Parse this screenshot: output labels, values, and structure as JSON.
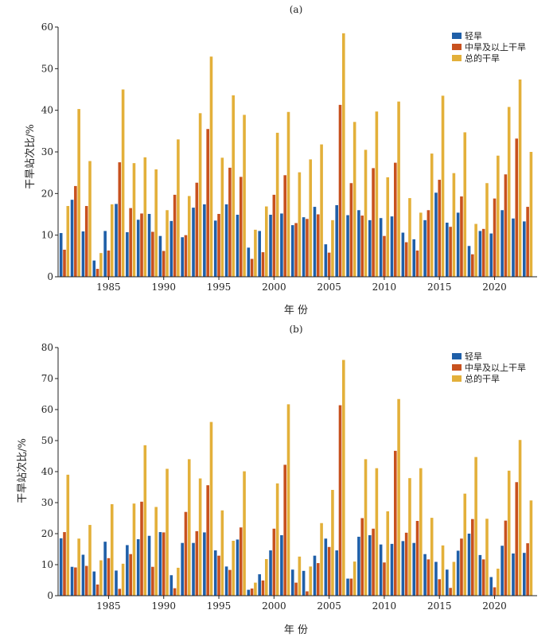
{
  "chart_data": [
    {
      "panel": "(a)",
      "type": "bar",
      "xlabel": "年 份",
      "ylabel": "干旱站次比/%",
      "ylim": [
        0,
        60
      ],
      "yticks": [
        0,
        10,
        20,
        30,
        40,
        50,
        60
      ],
      "xticks": [
        1985,
        1990,
        1995,
        2000,
        2005,
        2010,
        2015,
        2020
      ],
      "legend_position": "top-right",
      "x": [
        1981,
        1982,
        1983,
        1984,
        1985,
        1986,
        1987,
        1988,
        1989,
        1990,
        1991,
        1992,
        1993,
        1994,
        1995,
        1996,
        1997,
        1998,
        1999,
        2000,
        2001,
        2002,
        2003,
        2004,
        2005,
        2006,
        2007,
        2008,
        2009,
        2010,
        2011,
        2012,
        2013,
        2014,
        2015,
        2016,
        2017,
        2018,
        2019,
        2020,
        2021,
        2022,
        2023
      ],
      "series": [
        {
          "name": "轻旱",
          "color": "#1f5fa8",
          "values": [
            10.5,
            18.5,
            10.9,
            3.9,
            11.0,
            17.5,
            10.7,
            13.7,
            15.1,
            9.8,
            13.4,
            9.5,
            16.6,
            17.4,
            13.5,
            17.4,
            14.9,
            7.0,
            11.0,
            14.9,
            15.2,
            12.4,
            14.3,
            16.8,
            7.8,
            17.2,
            14.8,
            16.0,
            13.6,
            14.1,
            14.5,
            10.6,
            9.0,
            13.6,
            20.2,
            13.0,
            15.4,
            7.4,
            11.0,
            10.4,
            16.0,
            14.0,
            13.3
          ]
        },
        {
          "name": "中旱及以上干旱",
          "color": "#c8511e",
          "values": [
            6.5,
            21.8,
            17.0,
            1.9,
            6.3,
            27.5,
            16.5,
            15.2,
            10.8,
            6.2,
            19.7,
            10.0,
            22.6,
            35.5,
            15.1,
            26.2,
            24.0,
            4.3,
            5.9,
            19.7,
            24.4,
            12.9,
            13.9,
            15.0,
            5.8,
            41.3,
            22.5,
            14.7,
            26.1,
            9.8,
            27.4,
            8.3,
            6.3,
            16.0,
            23.3,
            12.0,
            19.3,
            5.4,
            11.5,
            18.8,
            24.6,
            33.2,
            16.8
          ]
        },
        {
          "name": "总的干旱",
          "color": "#e3b03a",
          "values": [
            17.0,
            40.3,
            27.8,
            5.7,
            17.4,
            45.0,
            27.3,
            28.7,
            25.8,
            16.0,
            33.0,
            19.4,
            39.3,
            52.9,
            28.6,
            43.6,
            38.9,
            11.3,
            16.9,
            34.6,
            39.6,
            25.1,
            28.2,
            31.8,
            13.6,
            58.5,
            37.2,
            30.5,
            39.7,
            23.9,
            42.1,
            18.9,
            15.4,
            29.6,
            43.5,
            24.9,
            34.7,
            12.7,
            22.5,
            29.1,
            40.8,
            47.4,
            30.0
          ]
        }
      ]
    },
    {
      "panel": "(b)",
      "type": "bar",
      "xlabel": "年 份",
      "ylabel": "干旱站次比/%",
      "ylim": [
        0,
        80
      ],
      "yticks": [
        0,
        10,
        20,
        30,
        40,
        50,
        60,
        70,
        80
      ],
      "xticks": [
        1985,
        1990,
        1995,
        2000,
        2005,
        2010,
        2015,
        2020
      ],
      "legend_position": "top-right",
      "x": [
        1981,
        1982,
        1983,
        1984,
        1985,
        1986,
        1987,
        1988,
        1989,
        1990,
        1991,
        1992,
        1993,
        1994,
        1995,
        1996,
        1997,
        1998,
        1999,
        2000,
        2001,
        2002,
        2003,
        2004,
        2005,
        2006,
        2007,
        2008,
        2009,
        2010,
        2011,
        2012,
        2013,
        2014,
        2015,
        2016,
        2017,
        2018,
        2019,
        2020,
        2021,
        2022,
        2023
      ],
      "series": [
        {
          "name": "轻旱",
          "color": "#1f5fa8",
          "values": [
            18.5,
            9.3,
            13.2,
            7.8,
            17.4,
            8.1,
            16.3,
            18.2,
            19.3,
            20.5,
            6.6,
            17.0,
            17.0,
            20.4,
            14.6,
            9.4,
            18.1,
            1.9,
            6.9,
            14.6,
            19.5,
            8.4,
            8.0,
            12.9,
            18.4,
            14.6,
            5.5,
            19.0,
            19.5,
            16.5,
            16.7,
            17.6,
            17.0,
            13.4,
            10.9,
            8.4,
            14.5,
            20.0,
            13.1,
            6.0,
            16.1,
            13.6,
            13.8
          ]
        },
        {
          "name": "中旱及以上干旱",
          "color": "#c8511e",
          "values": [
            20.5,
            9.1,
            9.6,
            3.6,
            12.1,
            2.2,
            13.4,
            30.3,
            9.3,
            20.4,
            2.4,
            27.0,
            20.8,
            35.6,
            12.9,
            8.3,
            22.0,
            2.3,
            4.9,
            21.6,
            42.2,
            4.2,
            1.4,
            10.5,
            15.7,
            61.4,
            5.5,
            25.0,
            21.6,
            10.7,
            46.7,
            20.3,
            24.1,
            11.7,
            5.3,
            2.5,
            18.4,
            24.7,
            11.7,
            2.7,
            24.2,
            36.6,
            16.9
          ]
        },
        {
          "name": "总的干旱",
          "color": "#e3b03a",
          "values": [
            39.0,
            18.4,
            22.8,
            11.4,
            29.5,
            10.3,
            29.7,
            48.5,
            28.6,
            40.9,
            9.0,
            44.0,
            37.8,
            56.0,
            27.5,
            17.7,
            40.1,
            4.2,
            11.8,
            36.2,
            61.7,
            12.6,
            9.4,
            23.4,
            34.1,
            76.0,
            11.0,
            44.0,
            41.1,
            27.2,
            63.4,
            37.9,
            41.1,
            25.1,
            16.2,
            10.9,
            32.9,
            44.7,
            24.8,
            8.7,
            40.3,
            50.2,
            30.7
          ]
        }
      ]
    }
  ]
}
